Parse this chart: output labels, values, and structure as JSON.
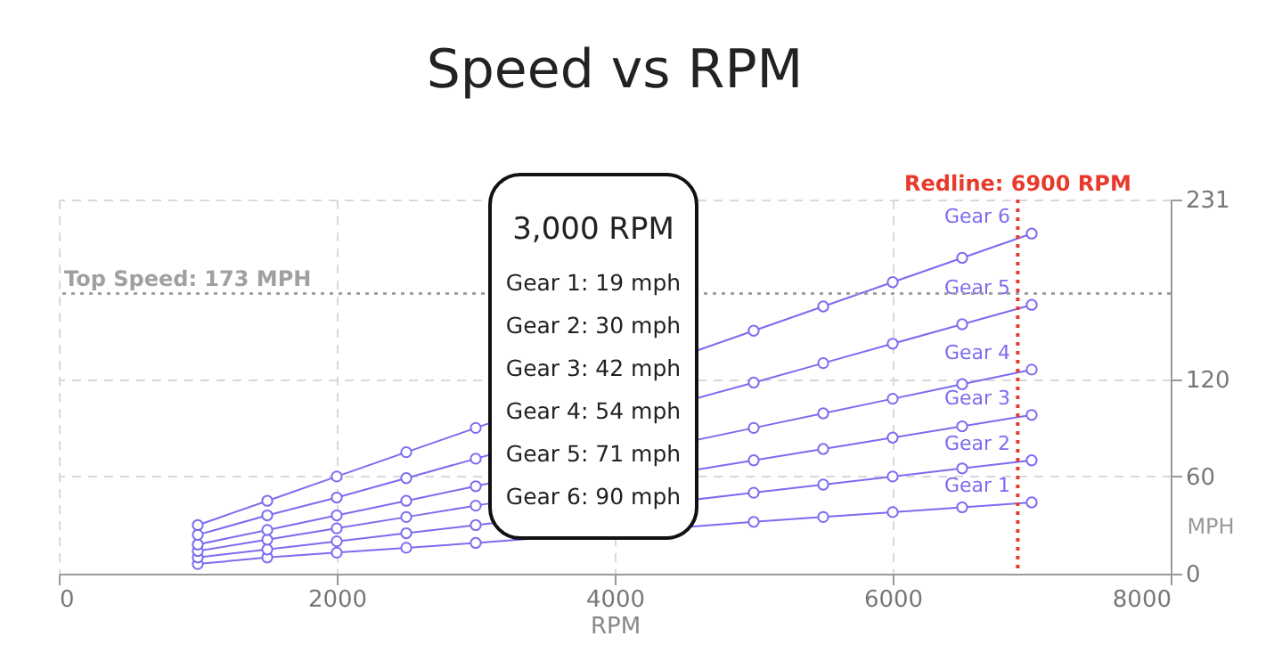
{
  "chart_data": {
    "type": "line",
    "title": "Speed vs RPM",
    "xlabel": "RPM",
    "ylabel": "MPH",
    "x": [
      1000,
      1500,
      2000,
      2500,
      3000,
      5000,
      5500,
      6000,
      6500,
      7000
    ],
    "xlim": [
      0,
      8000
    ],
    "xticks": [
      0,
      2000,
      4000,
      6000,
      8000
    ],
    "ylim": [
      0,
      231
    ],
    "yticks": [
      0,
      60,
      120,
      231
    ],
    "grid": true,
    "legend": false,
    "marker": "circle",
    "line_style": "solid",
    "series": [
      {
        "name": "Gear 1",
        "color": "#7b6cf0",
        "values": [
          6,
          10,
          13,
          16,
          19,
          32,
          35,
          38,
          41,
          44
        ]
      },
      {
        "name": "Gear 2",
        "color": "#7b6cf0",
        "values": [
          10,
          15,
          20,
          25,
          30,
          50,
          55,
          60,
          65,
          70
        ]
      },
      {
        "name": "Gear 3",
        "color": "#7b6cf0",
        "values": [
          14,
          21,
          28,
          35,
          42,
          70,
          77,
          84,
          91,
          98
        ]
      },
      {
        "name": "Gear 4",
        "color": "#7b6cf0",
        "values": [
          18,
          27,
          36,
          45,
          54,
          90,
          99,
          108,
          117,
          126
        ]
      },
      {
        "name": "Gear 5",
        "color": "#7b6cf0",
        "values": [
          24,
          36,
          47,
          59,
          71,
          118,
          130,
          142,
          154,
          166
        ]
      },
      {
        "name": "Gear 6",
        "color": "#7b6cf0",
        "values": [
          30,
          45,
          60,
          75,
          90,
          150,
          165,
          180,
          195,
          210
        ]
      }
    ],
    "ref_lines": [
      {
        "axis": "y",
        "value": 173,
        "label": "Top Speed: 173 MPH",
        "color": "#a0a0a0",
        "line_style": "dotted"
      },
      {
        "axis": "x",
        "value": 6900,
        "label": "Redline: 6900 RPM",
        "color": "#e8392b",
        "line_style": "dotted"
      }
    ],
    "annotations": [
      "3,000 RPM",
      "Gear 1: 19 mph",
      "Gear 2: 30 mph",
      "Gear 3: 42 mph",
      "Gear 4: 54 mph",
      "Gear 5: 71 mph",
      "Gear 6: 90 mph"
    ]
  }
}
